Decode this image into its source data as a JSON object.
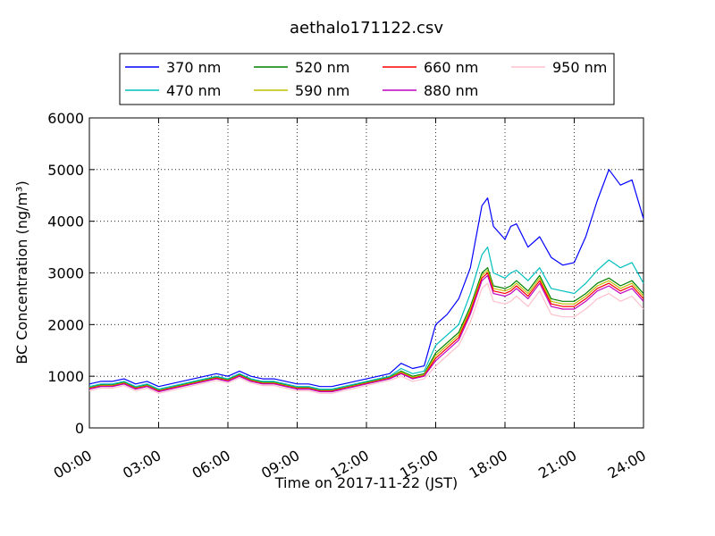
{
  "chart_data": {
    "type": "line",
    "title": "aethalo171122.csv",
    "xlabel": "Time on 2017-11-22 (JST)",
    "ylabel": "BC Concentration (ng/m³)",
    "x_ticks": [
      "00:00",
      "03:00",
      "06:00",
      "09:00",
      "12:00",
      "15:00",
      "18:00",
      "21:00",
      "24:00"
    ],
    "y_ticks": [
      "0",
      "1000",
      "2000",
      "3000",
      "4000",
      "5000",
      "6000"
    ],
    "xlim_hours": [
      0,
      24
    ],
    "ylim": [
      0,
      6000
    ],
    "grid": true,
    "legend_position": "top",
    "x_hours": [
      0,
      0.5,
      1,
      1.5,
      2,
      2.5,
      3,
      3.5,
      4,
      4.5,
      5,
      5.5,
      6,
      6.5,
      7,
      7.5,
      8,
      8.5,
      9,
      9.5,
      10,
      10.5,
      11,
      11.5,
      12,
      12.5,
      13,
      13.5,
      14,
      14.5,
      15,
      15.5,
      16,
      16.5,
      17,
      17.25,
      17.5,
      18,
      18.25,
      18.5,
      19,
      19.5,
      20,
      20.5,
      21,
      21.5,
      22,
      22.5,
      23,
      23.5,
      24
    ],
    "series": [
      {
        "name": "370 nm",
        "color": "#0000ff",
        "values": [
          850,
          900,
          900,
          950,
          850,
          900,
          800,
          850,
          900,
          950,
          1000,
          1050,
          1000,
          1100,
          1000,
          950,
          950,
          900,
          850,
          850,
          800,
          800,
          850,
          900,
          950,
          1000,
          1050,
          1250,
          1150,
          1200,
          2000,
          2200,
          2500,
          3100,
          4300,
          4450,
          3900,
          3650,
          3900,
          3950,
          3500,
          3700,
          3300,
          3150,
          3200,
          3700,
          4400,
          5000,
          4700,
          4800,
          4050
        ]
      },
      {
        "name": "470 nm",
        "color": "#00bfbf",
        "values": [
          800,
          850,
          850,
          900,
          800,
          850,
          750,
          800,
          850,
          900,
          950,
          1000,
          950,
          1050,
          950,
          900,
          900,
          850,
          800,
          800,
          750,
          750,
          800,
          850,
          900,
          950,
          1000,
          1150,
          1050,
          1100,
          1600,
          1800,
          2000,
          2600,
          3350,
          3500,
          3000,
          2900,
          3000,
          3050,
          2850,
          3100,
          2700,
          2650,
          2600,
          2800,
          3050,
          3250,
          3100,
          3200,
          2800
        ]
      },
      {
        "name": "520 nm",
        "color": "#008000",
        "values": [
          780,
          830,
          830,
          880,
          780,
          830,
          730,
          780,
          830,
          880,
          930,
          980,
          930,
          1030,
          930,
          880,
          880,
          830,
          780,
          780,
          730,
          730,
          780,
          830,
          880,
          930,
          980,
          1100,
          1000,
          1050,
          1450,
          1650,
          1850,
          2350,
          3000,
          3100,
          2750,
          2700,
          2750,
          2850,
          2650,
          2950,
          2500,
          2450,
          2450,
          2600,
          2800,
          2900,
          2750,
          2850,
          2600
        ]
      },
      {
        "name": "590 nm",
        "color": "#bfbf00",
        "values": [
          770,
          820,
          820,
          870,
          770,
          820,
          720,
          770,
          820,
          870,
          920,
          970,
          920,
          1020,
          920,
          870,
          870,
          820,
          770,
          770,
          720,
          720,
          770,
          820,
          870,
          920,
          970,
          1080,
          980,
          1030,
          1400,
          1600,
          1800,
          2300,
          2950,
          3050,
          2700,
          2650,
          2700,
          2800,
          2600,
          2900,
          2450,
          2400,
          2400,
          2550,
          2750,
          2850,
          2700,
          2800,
          2550
        ]
      },
      {
        "name": "660 nm",
        "color": "#ff0000",
        "values": [
          760,
          810,
          810,
          860,
          760,
          810,
          710,
          760,
          810,
          860,
          910,
          960,
          910,
          1010,
          910,
          860,
          860,
          810,
          760,
          760,
          710,
          710,
          760,
          810,
          860,
          910,
          960,
          1060,
          960,
          1010,
          1350,
          1550,
          1750,
          2250,
          2900,
          3000,
          2650,
          2600,
          2650,
          2750,
          2550,
          2850,
          2400,
          2350,
          2350,
          2500,
          2700,
          2800,
          2650,
          2750,
          2500
        ]
      },
      {
        "name": "880 nm",
        "color": "#bf00bf",
        "values": [
          750,
          800,
          800,
          850,
          750,
          800,
          700,
          750,
          800,
          850,
          900,
          950,
          900,
          1000,
          900,
          850,
          850,
          800,
          750,
          750,
          700,
          700,
          750,
          800,
          850,
          900,
          950,
          1050,
          950,
          1000,
          1300,
          1500,
          1700,
          2200,
          2850,
          2950,
          2600,
          2550,
          2600,
          2700,
          2500,
          2800,
          2350,
          2300,
          2300,
          2450,
          2650,
          2750,
          2600,
          2700,
          2450
        ]
      },
      {
        "name": "950 nm",
        "color": "#ffc0cb",
        "values": [
          720,
          770,
          770,
          820,
          720,
          770,
          670,
          720,
          770,
          820,
          870,
          920,
          870,
          970,
          870,
          820,
          820,
          770,
          720,
          720,
          670,
          670,
          720,
          770,
          820,
          870,
          920,
          1000,
          900,
          950,
          1200,
          1400,
          1600,
          2050,
          2700,
          2800,
          2450,
          2400,
          2450,
          2550,
          2350,
          2650,
          2200,
          2150,
          2150,
          2300,
          2500,
          2600,
          2450,
          2550,
          2300
        ]
      }
    ]
  }
}
